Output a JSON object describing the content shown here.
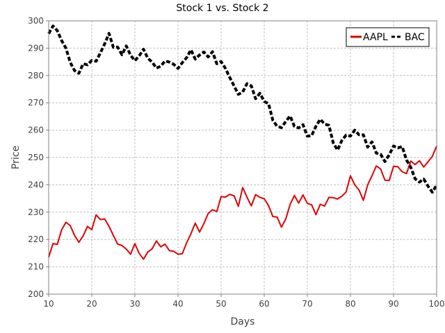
{
  "chart_data": {
    "type": "line",
    "title": "Stock 1 vs. Stock 2",
    "xlabel": "Days",
    "ylabel": "Price",
    "xlim": [
      10,
      100
    ],
    "ylim": [
      200,
      300
    ],
    "xticks": [
      10,
      20,
      30,
      40,
      50,
      60,
      70,
      80,
      90,
      100
    ],
    "yticks": [
      200,
      210,
      220,
      230,
      240,
      250,
      260,
      270,
      280,
      290,
      300
    ],
    "grid": true,
    "legend_position": "top-right",
    "x": [
      10,
      11,
      12,
      13,
      14,
      15,
      16,
      17,
      18,
      19,
      20,
      21,
      22,
      23,
      24,
      25,
      26,
      27,
      28,
      29,
      30,
      31,
      32,
      33,
      34,
      35,
      36,
      37,
      38,
      39,
      40,
      41,
      42,
      43,
      44,
      45,
      46,
      47,
      48,
      49,
      50,
      51,
      52,
      53,
      54,
      55,
      56,
      57,
      58,
      59,
      60,
      61,
      62,
      63,
      64,
      65,
      66,
      67,
      68,
      69,
      70,
      71,
      72,
      73,
      74,
      75,
      76,
      77,
      78,
      79,
      80,
      81,
      82,
      83,
      84,
      85,
      86,
      87,
      88,
      89,
      90,
      91,
      92,
      93,
      94,
      95,
      96,
      97,
      98,
      99,
      100
    ],
    "series": [
      {
        "name": "AAPL",
        "color": "#dd0000",
        "style": "solid",
        "values": [
          213.5,
          218.5,
          218.2,
          223.5,
          226.3,
          225.1,
          221.5,
          219.0,
          221.3,
          224.8,
          223.6,
          229.0,
          227.3,
          227.5,
          224.8,
          221.5,
          218.3,
          217.8,
          216.5,
          214.6,
          218.5,
          214.9,
          212.8,
          215.4,
          216.6,
          219.5,
          217.3,
          218.3,
          215.9,
          215.7,
          214.6,
          214.8,
          218.8,
          222.1,
          226.0,
          222.7,
          225.8,
          229.5,
          230.9,
          230.2,
          235.7,
          235.5,
          236.5,
          236.0,
          232.1,
          239.0,
          235.5,
          232.3,
          236.4,
          235.4,
          234.9,
          232.4,
          228.4,
          228.2,
          224.5,
          227.5,
          232.8,
          236.1,
          233.3,
          236.3,
          233.2,
          232.7,
          229.1,
          232.9,
          232.2,
          235.4,
          235.3,
          234.8,
          235.8,
          237.4,
          243.3,
          240.0,
          238.1,
          234.3,
          240.0,
          243.3,
          246.9,
          245.8,
          241.7,
          241.6,
          246.8,
          246.6,
          244.8,
          244.1,
          248.7,
          247.4,
          248.8,
          246.5,
          248.4,
          250.4,
          254.2
        ]
      },
      {
        "name": "BAC",
        "color": "#000000",
        "style": "dashed",
        "values": [
          295.3,
          298.1,
          296.4,
          292.8,
          290.0,
          284.8,
          281.8,
          280.8,
          284.3,
          283.9,
          285.5,
          285.2,
          288.3,
          291.6,
          295.4,
          290.3,
          290.4,
          287.6,
          290.8,
          287.4,
          285.4,
          287.2,
          289.6,
          286.3,
          284.9,
          282.7,
          283.4,
          285.3,
          284.9,
          284.1,
          282.6,
          284.7,
          286.5,
          289.4,
          286.0,
          287.5,
          288.6,
          286.8,
          288.7,
          284.3,
          285.1,
          282.6,
          279.3,
          276.2,
          273.1,
          273.9,
          277.0,
          276.2,
          271.5,
          273.5,
          270.5,
          269.7,
          263.6,
          261.4,
          260.9,
          263.2,
          265.2,
          261.4,
          260.8,
          262.0,
          257.8,
          258.0,
          261.4,
          264.0,
          262.2,
          261.8,
          255.4,
          252.7,
          256.2,
          258.2,
          257.8,
          260.0,
          258.3,
          258.3,
          253.8,
          255.7,
          251.6,
          251.2,
          248.5,
          251.0,
          254.2,
          253.5,
          254.0,
          249.1,
          246.4,
          242.2,
          241.0,
          242.1,
          239.5,
          237.3,
          239.9
        ]
      }
    ]
  }
}
